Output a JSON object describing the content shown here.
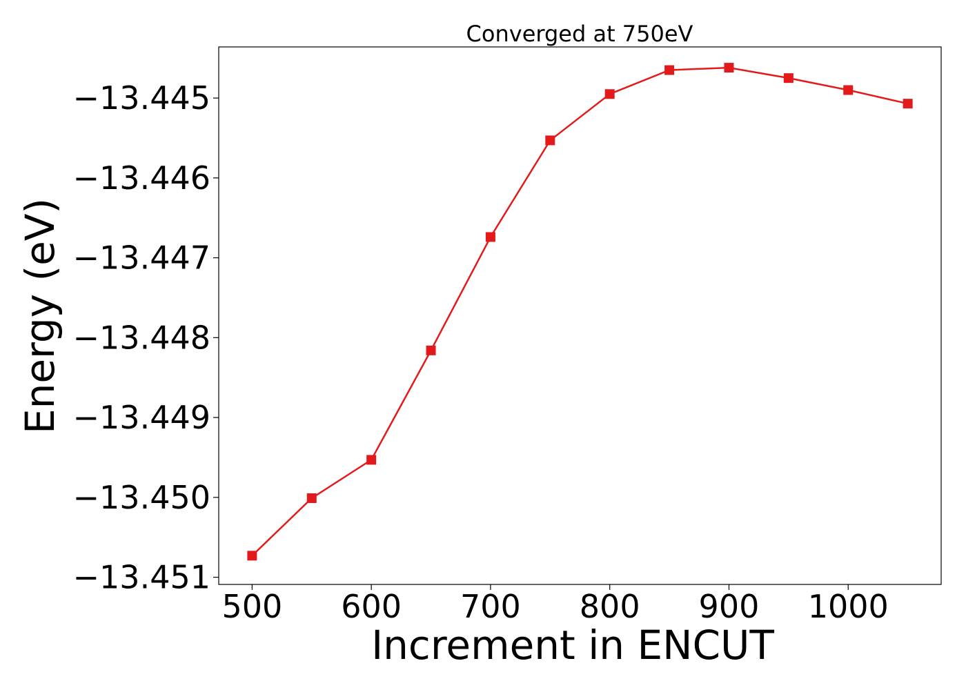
{
  "chart_data": {
    "type": "line",
    "title": "Converged at 750eV",
    "xlabel": "Increment in ENCUT",
    "ylabel": "Energy (eV)",
    "xlim": [
      472,
      1078
    ],
    "ylim": [
      -13.45109,
      -13.44436
    ],
    "xticks": [
      500,
      600,
      700,
      800,
      900,
      1000
    ],
    "xtick_labels": [
      "500",
      "600",
      "700",
      "800",
      "900",
      "1000"
    ],
    "yticks": [
      -13.445,
      -13.446,
      -13.447,
      -13.448,
      -13.449,
      -13.45,
      -13.451
    ],
    "ytick_labels": [
      "−13.445",
      "−13.446",
      "−13.447",
      "−13.448",
      "−13.449",
      "−13.450",
      "−13.451"
    ],
    "grid": false,
    "legend": "none",
    "series": [
      {
        "color": "#e31a1c",
        "marker": "square",
        "x": [
          500,
          550,
          600,
          650,
          700,
          750,
          800,
          850,
          900,
          950,
          1000,
          1050
        ],
        "y": [
          -13.45073,
          -13.45001,
          -13.44953,
          -13.44816,
          -13.44674,
          -13.44553,
          -13.44495,
          -13.44465,
          -13.44462,
          -13.44475,
          -13.4449,
          -13.44507
        ]
      }
    ]
  }
}
